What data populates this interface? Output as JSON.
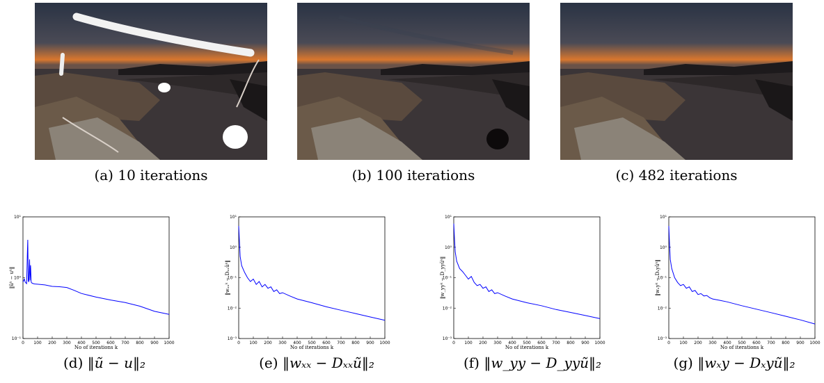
{
  "photos": [
    {
      "id": "a",
      "caption": "(a) 10 iterations"
    },
    {
      "id": "b",
      "caption": "(b) 100 iterations"
    },
    {
      "id": "c",
      "caption": "(c) 482 iterations"
    }
  ],
  "colors": {
    "curve": "#0000ff",
    "sky_top": "#2b3446",
    "horizon": "#e07a2a",
    "water": "#3a3436"
  },
  "chart_data": [
    {
      "type": "line",
      "id": "d",
      "caption_prefix": "(d)",
      "caption_math": "‖ũ − u‖₂",
      "ylabel": "‖ũᵏ − uᵏ‖",
      "xlabel": "No of iterations k",
      "yscale": "log",
      "ylim": [
        0.1,
        10
      ],
      "ytick_labels": [
        "10⁻¹",
        "10⁰",
        "10¹"
      ],
      "xlim": [
        0,
        1000
      ],
      "xtick_labels": [
        "0",
        "100",
        "200",
        "300",
        "400",
        "500",
        "600",
        "700",
        "800",
        "900",
        "1000"
      ],
      "series": [
        {
          "x": [
            0,
            5,
            10,
            15,
            20,
            25,
            30,
            33,
            36,
            40,
            45,
            48,
            52,
            56,
            60,
            65,
            70,
            80,
            100,
            150,
            200,
            250,
            300,
            350,
            400,
            500,
            600,
            700,
            800,
            900,
            1000
          ],
          "y": [
            0.85,
            0.9,
            0.95,
            0.85,
            0.82,
            0.8,
            2.5,
            4.2,
            0.9,
            0.85,
            2.0,
            0.9,
            1.6,
            0.85,
            0.82,
            0.81,
            0.8,
            0.79,
            0.78,
            0.76,
            0.72,
            0.71,
            0.69,
            0.62,
            0.55,
            0.48,
            0.43,
            0.39,
            0.34,
            0.28,
            0.25
          ]
        }
      ]
    },
    {
      "type": "line",
      "id": "e",
      "caption_prefix": "(e)",
      "caption_math": "‖wₓₓ − Dₓₓũ‖₂",
      "ylabel": "‖wₓₓᵏ − Dₓₓũᵏ‖",
      "xlabel": "No of iterations k",
      "yscale": "log",
      "ylim": [
        0.001,
        10
      ],
      "ytick_labels": [
        "10⁻³",
        "10⁻²",
        "10⁻¹",
        "10⁰",
        "10¹"
      ],
      "xlim": [
        0,
        1000
      ],
      "xtick_labels": [
        "0",
        "100",
        "200",
        "300",
        "400",
        "500",
        "600",
        "700",
        "800",
        "900",
        "1000"
      ],
      "series": [
        {
          "x": [
            0,
            5,
            10,
            20,
            40,
            60,
            80,
            100,
            120,
            140,
            160,
            180,
            200,
            220,
            240,
            260,
            280,
            300,
            350,
            400,
            500,
            600,
            700,
            800,
            900,
            1000
          ],
          "y": [
            5,
            1.5,
            0.5,
            0.25,
            0.15,
            0.1,
            0.075,
            0.09,
            0.06,
            0.075,
            0.05,
            0.06,
            0.045,
            0.05,
            0.035,
            0.04,
            0.03,
            0.032,
            0.025,
            0.02,
            0.015,
            0.011,
            0.0085,
            0.0066,
            0.0051,
            0.004
          ]
        }
      ]
    },
    {
      "type": "line",
      "id": "f",
      "caption_prefix": "(f)",
      "caption_math": "‖w_yy − D_yyũ‖₂",
      "ylabel": "‖w_yyᵏ − D_yyũᵏ‖",
      "xlabel": "No of iterations k",
      "yscale": "log",
      "ylim": [
        0.001,
        10
      ],
      "ytick_labels": [
        "10⁻³",
        "10⁻²",
        "10⁻¹",
        "10⁰",
        "10¹"
      ],
      "xlim": [
        0,
        1000
      ],
      "xtick_labels": [
        "0",
        "100",
        "200",
        "300",
        "400",
        "500",
        "600",
        "700",
        "800",
        "900",
        "1000"
      ],
      "series": [
        {
          "x": [
            0,
            5,
            10,
            20,
            40,
            60,
            80,
            100,
            120,
            140,
            160,
            180,
            200,
            220,
            240,
            260,
            280,
            300,
            350,
            400,
            500,
            600,
            700,
            800,
            900,
            1000
          ],
          "y": [
            6,
            1.8,
            0.7,
            0.35,
            0.2,
            0.16,
            0.12,
            0.09,
            0.11,
            0.07,
            0.055,
            0.06,
            0.045,
            0.05,
            0.035,
            0.04,
            0.03,
            0.032,
            0.025,
            0.02,
            0.015,
            0.012,
            0.009,
            0.0072,
            0.0057,
            0.0045
          ]
        }
      ]
    },
    {
      "type": "line",
      "id": "g",
      "caption_prefix": "(g)",
      "caption_math": "‖wₓy − Dₓyũ‖₂",
      "ylabel": "‖wₓyᵏ − Dₓyũᵏ‖",
      "xlabel": "No of iterations k",
      "yscale": "log",
      "ylim": [
        0.001,
        10
      ],
      "ytick_labels": [
        "10⁻³",
        "10⁻²",
        "10⁻¹",
        "10⁰",
        "10¹"
      ],
      "xlim": [
        0,
        1000
      ],
      "xtick_labels": [
        "0",
        "100",
        "200",
        "300",
        "400",
        "500",
        "600",
        "700",
        "800",
        "900",
        "1000"
      ],
      "series": [
        {
          "x": [
            0,
            5,
            10,
            20,
            40,
            60,
            80,
            100,
            120,
            140,
            160,
            180,
            200,
            220,
            240,
            260,
            280,
            300,
            350,
            400,
            500,
            600,
            700,
            800,
            900,
            1000
          ],
          "y": [
            5,
            1.2,
            0.4,
            0.2,
            0.1,
            0.07,
            0.055,
            0.06,
            0.045,
            0.05,
            0.035,
            0.038,
            0.028,
            0.03,
            0.025,
            0.026,
            0.022,
            0.02,
            0.018,
            0.016,
            0.012,
            0.0092,
            0.0071,
            0.0054,
            0.0041,
            0.003
          ]
        }
      ]
    }
  ]
}
